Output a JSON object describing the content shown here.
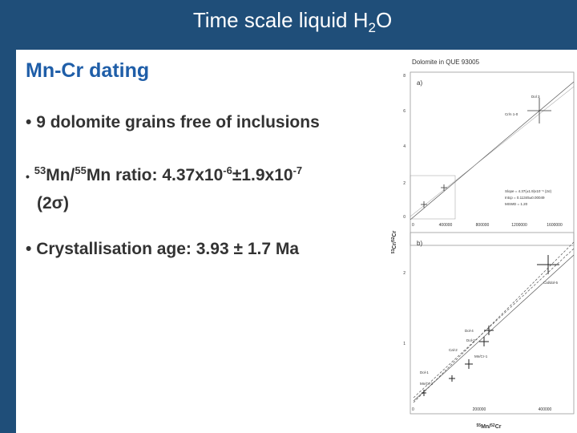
{
  "title": {
    "main": "Time scale liquid H",
    "sub": "2",
    "end": "O"
  },
  "heading": "Mn-Cr dating",
  "bullets": [
    {
      "text": "9 dolomite grains free of inclusions"
    },
    {
      "sup1": "53",
      "text1": "Mn/",
      "sup2": "55",
      "text2": "Mn ratio: 4.37x10",
      "sup3": "-6",
      "text3": "±1.9x10",
      "sup4": "-7",
      "line2": "(2σ)"
    },
    {
      "text": "Crystallisation age: 3.93 ± 1.7 Ma"
    }
  ],
  "figure": {
    "title": "Dolomite in QUE 93005",
    "panel_a": "a)",
    "panel_b": "b)",
    "y_label": {
      "sup1": "53",
      "mid": "Cr/",
      "sup2": "52",
      "end": "Cr"
    },
    "x_label": {
      "sup1": "55",
      "mid": "Mn/",
      "sup2": "52",
      "end": "Cr"
    },
    "a_yticks": [
      "8",
      "6",
      "4",
      "2",
      "0"
    ],
    "a_xticks": [
      "0",
      "400000",
      "800000",
      "1200000",
      "1600000"
    ],
    "a_stats": [
      "Slope = 4.37(±1.9)x10⁻⁶ (2σ)",
      "Intcp = 0.11345±0.00049",
      "MSWD = 1.20"
    ],
    "a_points": [
      "Dol 3",
      "Cr/n 1-0"
    ],
    "b_yticks": [
      "2",
      "1"
    ],
    "b_xticks": [
      "0",
      "200000",
      "400000"
    ],
    "b_points": [
      "Cal/dol-5",
      "Dol-4",
      "Dol-2",
      "Cal-2",
      "Mn/Cr-1",
      "Dol-1",
      "Mn/Cr-2"
    ]
  }
}
